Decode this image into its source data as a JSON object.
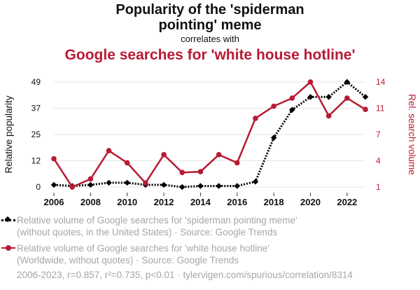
{
  "header": {
    "title_line1": "Popularity of the 'spiderman",
    "title_line2": "pointing' meme",
    "correlates": "correlates with",
    "subtitle": "Google searches for 'white house hotline'"
  },
  "chart_data": {
    "type": "line",
    "x": [
      2006,
      2007,
      2008,
      2009,
      2010,
      2011,
      2012,
      2013,
      2014,
      2015,
      2016,
      2017,
      2018,
      2019,
      2020,
      2021,
      2022,
      2023
    ],
    "x_ticks": [
      "2006",
      "2008",
      "2010",
      "2012",
      "2014",
      "2016",
      "2018",
      "2020",
      "2022"
    ],
    "y_left": {
      "label": "Relative popularity",
      "ticks": [
        "0",
        "12",
        "25",
        "37",
        "49"
      ],
      "range": [
        0,
        49
      ]
    },
    "y_right": {
      "label": "Rel. search volume",
      "ticks": [
        "1",
        "4",
        "7",
        "11",
        "14"
      ],
      "range": [
        1,
        14
      ]
    },
    "series": [
      {
        "axis": "left",
        "color": "#000000",
        "style": "dotted",
        "marker": "diamond",
        "values": [
          1,
          0.5,
          1,
          2,
          2,
          1,
          1,
          0,
          0.5,
          0.5,
          0.5,
          2.5,
          23,
          36,
          42,
          42,
          49,
          42
        ]
      },
      {
        "axis": "right",
        "color": "#b81a33",
        "style": "solid",
        "marker": "circle",
        "values": [
          4.5,
          1,
          2,
          5.5,
          4,
          1.5,
          5,
          2.8,
          2.9,
          5,
          4,
          9.5,
          11,
          12,
          14,
          9.8,
          12,
          10.6
        ]
      }
    ],
    "legend": [
      {
        "line1": "Relative volume of Google searches for 'spiderman pointing meme'",
        "line2": "(without quotes, in the United States) · Source: Google Trends"
      },
      {
        "line1": "Relative volume of Google searches for 'white house hotline'",
        "line2": "(Worldwide, without quotes) · Source: Google Trends"
      }
    ],
    "footer": "2006-2023, r=0.857, r²=0.735, p<0.01 · tylervigen.com/spurious/correlation/8314"
  }
}
